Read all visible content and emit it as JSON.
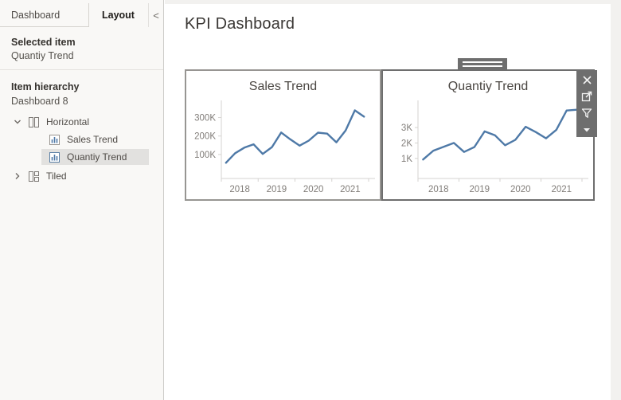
{
  "colors": {
    "line": "#4e79a7",
    "selection_chrome": "#6e6e6e",
    "sidebar_bg": "#f9f8f6",
    "axis_text": "#817d79",
    "axis_line": "#d5d3d0"
  },
  "sidebar": {
    "tabs": [
      {
        "label": "Dashboard",
        "active": false
      },
      {
        "label": "Layout",
        "active": true
      }
    ],
    "collapse_icon": "<",
    "selected_item": {
      "label": "Selected item",
      "value": "Quantiy Trend"
    },
    "hierarchy": {
      "label": "Item hierarchy",
      "root": "Dashboard 8",
      "items": [
        {
          "label": "Horizontal",
          "type": "horizontal-container",
          "expanded": true
        },
        {
          "label": "Sales Trend",
          "type": "sheet"
        },
        {
          "label": "Quantiy Trend",
          "type": "sheet",
          "selected": true
        },
        {
          "label": "Tiled",
          "type": "tiled-container",
          "expanded": false
        }
      ]
    }
  },
  "main": {
    "title": "KPI Dashboard"
  },
  "zone_toolbar": {
    "icons": [
      "close-icon",
      "go-to-sheet-icon",
      "filter-icon",
      "menu-caret-icon"
    ]
  },
  "chart_data": [
    {
      "type": "line",
      "title": "Sales Trend",
      "x_labels": [
        "2018",
        "2019",
        "2020",
        "2021"
      ],
      "x_note": "quarterly points Q1 2018 - Q4 2021",
      "values": [
        55,
        107,
        137,
        155,
        103,
        140,
        219,
        182,
        148,
        175,
        218,
        213,
        166,
        230,
        339,
        305
      ],
      "unit": "K",
      "y_ticks": [
        {
          "label": "300K",
          "value": 300
        },
        {
          "label": "200K",
          "value": 200
        },
        {
          "label": "100K",
          "value": 100
        }
      ],
      "ylim": [
        -30,
        380
      ],
      "color": "#4e79a7",
      "grid": false,
      "legend": "none"
    },
    {
      "type": "line",
      "title": "Quantiy Trend",
      "x_labels": [
        "2018",
        "2019",
        "2020",
        "2021"
      ],
      "x_note": "quarterly points Q1 2018 - Q4 2021",
      "values": [
        0.93,
        1.5,
        1.75,
        2.0,
        1.42,
        1.73,
        2.75,
        2.5,
        1.85,
        2.2,
        3.05,
        2.7,
        2.3,
        2.85,
        4.1,
        4.15
      ],
      "unit": "K",
      "y_ticks": [
        {
          "label": "3K",
          "value": 3
        },
        {
          "label": "2K",
          "value": 2
        },
        {
          "label": "1K",
          "value": 1
        }
      ],
      "ylim": [
        -0.3,
        4.6
      ],
      "color": "#4e79a7",
      "grid": false,
      "legend": "none"
    }
  ]
}
